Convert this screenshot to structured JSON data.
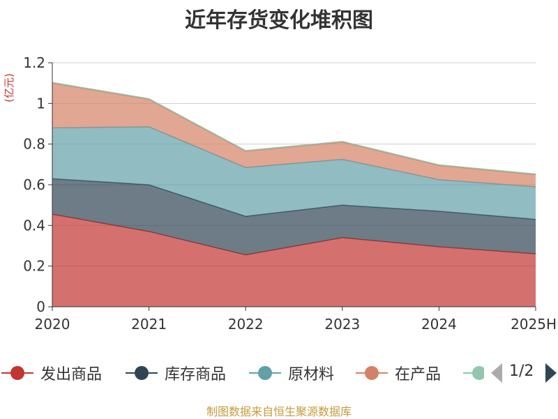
{
  "chart_data": {
    "type": "area",
    "stacked": true,
    "title": "近年存货变化堆积图",
    "ylabel": "(亿元)",
    "categories": [
      "2020",
      "2021",
      "2022",
      "2023",
      "2024",
      "2025H"
    ],
    "ylim": [
      0,
      1.2
    ],
    "yticks": [
      0,
      0.2,
      0.4,
      0.6,
      0.8,
      1,
      1.2
    ],
    "ytick_labels": [
      "0",
      "0.2",
      "0.4",
      "0.6",
      "0.8",
      "1",
      "1.2"
    ],
    "grid": true,
    "legend_position": "bottom",
    "series": [
      {
        "name": "发出商品",
        "color": "#c23531",
        "values": [
          0.455,
          0.37,
          0.255,
          0.34,
          0.295,
          0.26
        ]
      },
      {
        "name": "库存商品",
        "color": "#2f4554",
        "values": [
          0.175,
          0.23,
          0.19,
          0.16,
          0.175,
          0.17
        ]
      },
      {
        "name": "原材料",
        "color": "#61a0a8",
        "values": [
          0.25,
          0.285,
          0.24,
          0.225,
          0.155,
          0.16
        ]
      },
      {
        "name": "在产品",
        "color": "#d48265",
        "values": [
          0.22,
          0.135,
          0.08,
          0.085,
          0.07,
          0.06
        ]
      },
      {
        "name": "",
        "color": "#91c7ae",
        "values": [
          0.003,
          0.003,
          0.003,
          0.003,
          0.003,
          0.003
        ]
      }
    ]
  },
  "legend": {
    "pager": "1/2"
  },
  "source": "制图数据来自恒生聚源数据库"
}
